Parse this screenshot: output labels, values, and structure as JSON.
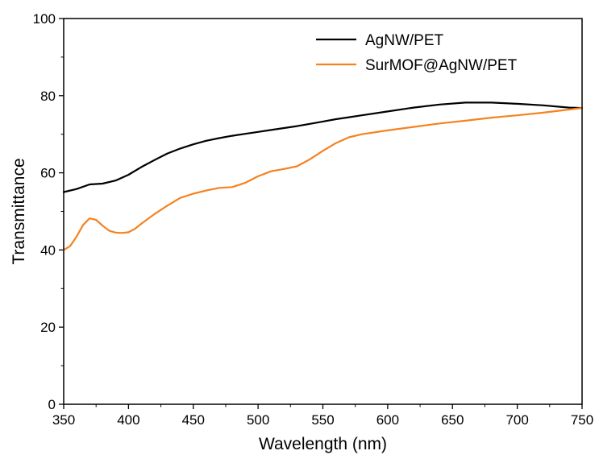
{
  "chart_data": {
    "type": "line",
    "title": "",
    "xlabel": "Wavelength (nm)",
    "ylabel": "Transmittance",
    "xlim": [
      350,
      750
    ],
    "ylim": [
      0,
      100
    ],
    "xticks": [
      350,
      400,
      450,
      500,
      550,
      600,
      650,
      700,
      750
    ],
    "yticks": [
      0,
      20,
      40,
      60,
      80,
      100
    ],
    "grid": false,
    "legend_position": "top-right",
    "series": [
      {
        "name": "AgNW/PET",
        "color": "#000000",
        "x": [
          350,
          360,
          370,
          380,
          390,
          400,
          410,
          420,
          430,
          440,
          450,
          460,
          470,
          480,
          490,
          500,
          510,
          520,
          530,
          540,
          550,
          560,
          570,
          580,
          600,
          620,
          640,
          660,
          680,
          700,
          720,
          740,
          750
        ],
        "y": [
          55,
          55.8,
          57,
          57.2,
          58,
          59.5,
          61.5,
          63.3,
          65,
          66.3,
          67.4,
          68.3,
          69,
          69.6,
          70.1,
          70.6,
          71.1,
          71.6,
          72.1,
          72.7,
          73.3,
          73.9,
          74.4,
          74.9,
          75.9,
          76.9,
          77.7,
          78.2,
          78.2,
          77.9,
          77.5,
          76.9,
          76.8
        ]
      },
      {
        "name": "SurMOF@AgNW/PET",
        "color": "#f58220",
        "x": [
          350,
          355,
          360,
          365,
          370,
          375,
          380,
          385,
          390,
          395,
          400,
          405,
          410,
          420,
          430,
          440,
          450,
          460,
          470,
          480,
          490,
          500,
          510,
          520,
          530,
          540,
          550,
          560,
          570,
          580,
          600,
          620,
          640,
          660,
          680,
          700,
          720,
          740,
          750
        ],
        "y": [
          40,
          41,
          43.5,
          46.5,
          48.2,
          47.8,
          46.3,
          45,
          44.5,
          44.4,
          44.6,
          45.5,
          46.8,
          49.3,
          51.5,
          53.5,
          54.6,
          55.4,
          56.1,
          56.3,
          57.4,
          59.1,
          60.4,
          61,
          61.7,
          63.5,
          65.7,
          67.7,
          69.2,
          70,
          71,
          71.9,
          72.8,
          73.5,
          74.3,
          74.9,
          75.6,
          76.4,
          76.8
        ]
      }
    ]
  }
}
